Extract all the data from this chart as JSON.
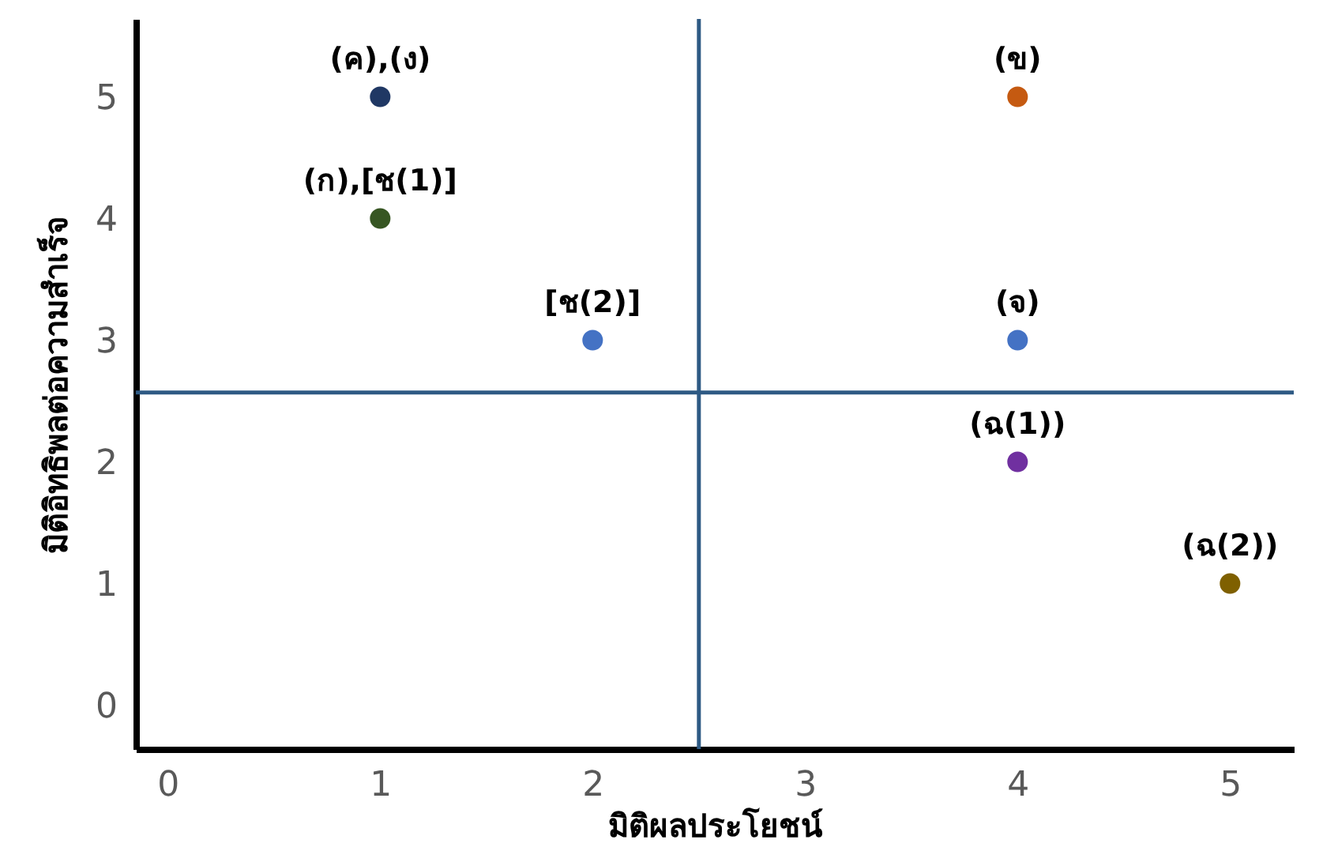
{
  "chart_data": {
    "type": "scatter",
    "xlabel": "มิติผลประโยชน์",
    "ylabel": "มิติอิทธิพลต่อความสำเร็จ",
    "x": [
      1,
      4,
      1,
      2,
      4,
      4,
      5
    ],
    "series": [
      {
        "values": [
          5,
          5,
          4,
          3,
          3,
          2,
          1
        ],
        "colors": [
          "#203864",
          "#c55a11",
          "#375623",
          "#4472c4",
          "#4472c4",
          "#7030a0",
          "#7f6000"
        ]
      }
    ],
    "xlim": [
      -0.15,
      5.3
    ],
    "ylim": [
      -0.36,
      5.64
    ],
    "xticks": [
      0,
      1,
      2,
      3,
      4,
      5
    ],
    "yticks": [
      0,
      1,
      2,
      3,
      4,
      5
    ],
    "grid": false,
    "marker": "circle",
    "ref_lines": [
      {
        "axis": "x",
        "value": 2.5,
        "color": "#2e5a84"
      },
      {
        "axis": "y",
        "value": 2.57,
        "color": "#2e5a84"
      }
    ],
    "annotations": [
      {
        "text": "(ค),(ง)",
        "x": 1,
        "y": 5
      },
      {
        "text": "(ข)",
        "x": 4,
        "y": 5
      },
      {
        "text": "(ก),[ช(1)]",
        "x": 1,
        "y": 4
      },
      {
        "text": "[ช(2)]",
        "x": 2,
        "y": 3
      },
      {
        "text": "(จ)",
        "x": 4,
        "y": 3
      },
      {
        "text": "(ฉ(1))",
        "x": 4,
        "y": 2
      },
      {
        "text": "(ฉ(2))",
        "x": 5,
        "y": 1
      }
    ]
  }
}
